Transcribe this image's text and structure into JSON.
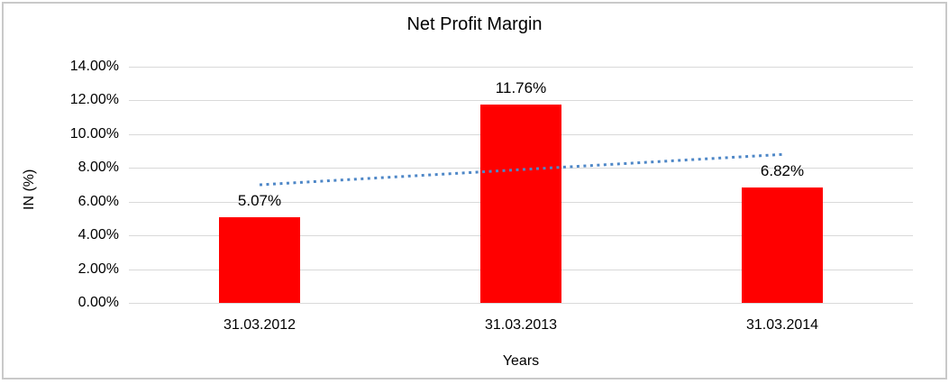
{
  "chart_data": {
    "type": "bar",
    "title": "Net Profit Margin",
    "xlabel": "Years",
    "ylabel": "IN (%)",
    "categories": [
      "31.03.2012",
      "31.03.2013",
      "31.03.2014"
    ],
    "values": [
      5.07,
      11.76,
      6.82
    ],
    "value_labels": [
      "5.07%",
      "11.76%",
      "6.82%"
    ],
    "ylim": [
      0,
      14
    ],
    "yticks": [
      {
        "value": 0,
        "label": "0.00%"
      },
      {
        "value": 2,
        "label": "2.00%"
      },
      {
        "value": 4,
        "label": "4.00%"
      },
      {
        "value": 6,
        "label": "6.00%"
      },
      {
        "value": 8,
        "label": "8.00%"
      },
      {
        "value": 10,
        "label": "10.00%"
      },
      {
        "value": 12,
        "label": "12.00%"
      },
      {
        "value": 14,
        "label": "14.00%"
      }
    ],
    "grid": true,
    "legend": false,
    "bar_color": "#ff0000",
    "gridline_color": "#d9d9d9",
    "frame_color": "#c9c9c9",
    "trendline": {
      "type": "linear",
      "style": "dotted",
      "color": "#4e87c7",
      "start_value": 7.0,
      "end_value": 8.8
    }
  }
}
